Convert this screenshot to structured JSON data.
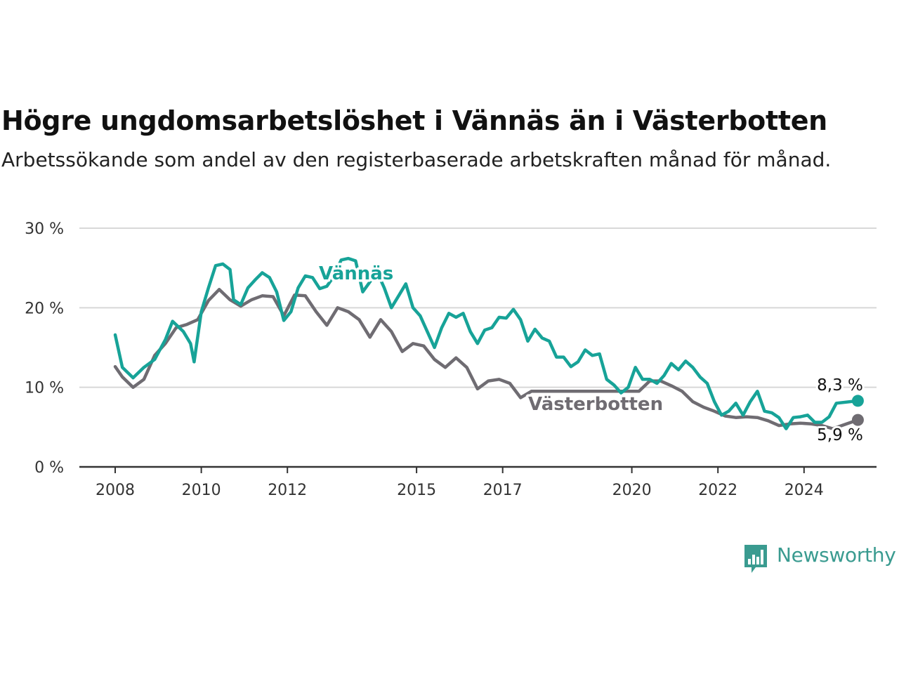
{
  "title": "Högre ungdomsarbetslöshet i Vännäs än i Västerbotten",
  "subtitle": "Arbetssökande som andel av den registerbaserade arbetskraften månad för månad.",
  "brand": {
    "name": "Newsworthy",
    "color": "#3a9b90",
    "icon": "newsworthy-chart-icon"
  },
  "chart_data": {
    "type": "line",
    "title": "Högre ungdomsarbetslöshet i Vännäs än i Västerbotten",
    "ylabel": "",
    "xlabel": "",
    "ylim": [
      0,
      30
    ],
    "xlim": [
      "2008-01",
      "2025-05"
    ],
    "y_ticks": [
      0,
      10,
      20,
      30
    ],
    "y_tick_labels": [
      "0 %",
      "10 %",
      "20 %",
      "30 %"
    ],
    "x_ticks": [
      "2008-01",
      "2010-01",
      "2012-01",
      "2015-01",
      "2017-01",
      "2020-01",
      "2022-01",
      "2024-01"
    ],
    "x_tick_labels": [
      "2008",
      "2010",
      "2012",
      "2015",
      "2017",
      "2020",
      "2022",
      "2024"
    ],
    "grid": true,
    "legend": "inline labels",
    "series": [
      {
        "name": "Vännäs",
        "color": "#17a398",
        "end_label": "8,3 %",
        "points": [
          [
            "2008-01",
            16.6
          ],
          [
            "2008-03",
            12.5
          ],
          [
            "2008-06",
            11.2
          ],
          [
            "2008-09",
            12.5
          ],
          [
            "2008-12",
            13.5
          ],
          [
            "2009-03",
            16.0
          ],
          [
            "2009-05",
            18.3
          ],
          [
            "2009-08",
            17.0
          ],
          [
            "2009-10",
            15.5
          ],
          [
            "2009-11",
            13.2
          ],
          [
            "2010-01",
            19.5
          ],
          [
            "2010-03",
            22.5
          ],
          [
            "2010-05",
            25.3
          ],
          [
            "2010-07",
            25.5
          ],
          [
            "2010-09",
            24.8
          ],
          [
            "2010-10",
            21.0
          ],
          [
            "2010-12",
            20.4
          ],
          [
            "2011-02",
            22.5
          ],
          [
            "2011-04",
            23.5
          ],
          [
            "2011-06",
            24.4
          ],
          [
            "2011-08",
            23.8
          ],
          [
            "2011-10",
            22.0
          ],
          [
            "2011-12",
            18.4
          ],
          [
            "2012-02",
            19.5
          ],
          [
            "2012-04",
            22.5
          ],
          [
            "2012-06",
            24.0
          ],
          [
            "2012-08",
            23.8
          ],
          [
            "2012-10",
            22.4
          ],
          [
            "2012-12",
            22.7
          ],
          [
            "2013-02",
            24.0
          ],
          [
            "2013-04",
            26.0
          ],
          [
            "2013-06",
            26.2
          ],
          [
            "2013-08",
            25.9
          ],
          [
            "2013-10",
            22.0
          ],
          [
            "2014-02",
            24.5
          ],
          [
            "2014-04",
            22.5
          ],
          [
            "2014-06",
            20.0
          ],
          [
            "2014-08",
            21.5
          ],
          [
            "2014-10",
            23.0
          ],
          [
            "2014-12",
            20.0
          ],
          [
            "2015-02",
            19.0
          ],
          [
            "2015-04",
            17.0
          ],
          [
            "2015-06",
            15.0
          ],
          [
            "2015-08",
            17.5
          ],
          [
            "2015-10",
            19.3
          ],
          [
            "2015-12",
            18.8
          ],
          [
            "2016-02",
            19.3
          ],
          [
            "2016-04",
            17.0
          ],
          [
            "2016-06",
            15.5
          ],
          [
            "2016-08",
            17.2
          ],
          [
            "2016-10",
            17.5
          ],
          [
            "2016-12",
            18.8
          ],
          [
            "2017-02",
            18.7
          ],
          [
            "2017-04",
            19.8
          ],
          [
            "2017-06",
            18.5
          ],
          [
            "2017-08",
            15.8
          ],
          [
            "2017-10",
            17.3
          ],
          [
            "2017-12",
            16.2
          ],
          [
            "2018-02",
            15.8
          ],
          [
            "2018-04",
            13.8
          ],
          [
            "2018-06",
            13.8
          ],
          [
            "2018-08",
            12.6
          ],
          [
            "2018-10",
            13.2
          ],
          [
            "2018-12",
            14.7
          ],
          [
            "2019-02",
            14.0
          ],
          [
            "2019-04",
            14.2
          ],
          [
            "2019-06",
            11.0
          ],
          [
            "2019-08",
            10.3
          ],
          [
            "2019-10",
            9.3
          ],
          [
            "2019-12",
            10.0
          ],
          [
            "2020-02",
            12.5
          ],
          [
            "2020-04",
            11.0
          ],
          [
            "2020-06",
            11.0
          ],
          [
            "2020-08",
            10.5
          ],
          [
            "2020-10",
            11.5
          ],
          [
            "2020-12",
            13.0
          ],
          [
            "2021-02",
            12.2
          ],
          [
            "2021-04",
            13.3
          ],
          [
            "2021-06",
            12.5
          ],
          [
            "2021-08",
            11.3
          ],
          [
            "2021-10",
            10.5
          ],
          [
            "2021-12",
            8.2
          ],
          [
            "2022-02",
            6.5
          ],
          [
            "2022-04",
            7.0
          ],
          [
            "2022-06",
            8.0
          ],
          [
            "2022-08",
            6.5
          ],
          [
            "2022-10",
            8.2
          ],
          [
            "2022-12",
            9.5
          ],
          [
            "2023-02",
            7.0
          ],
          [
            "2023-04",
            6.8
          ],
          [
            "2023-06",
            6.2
          ],
          [
            "2023-08",
            4.8
          ],
          [
            "2023-10",
            6.2
          ],
          [
            "2023-12",
            6.3
          ],
          [
            "2024-02",
            6.5
          ],
          [
            "2024-04",
            5.6
          ],
          [
            "2024-06",
            5.6
          ],
          [
            "2024-08",
            6.3
          ],
          [
            "2024-10",
            8.0
          ],
          [
            "2025-04",
            8.3
          ]
        ]
      },
      {
        "name": "Västerbotten",
        "color": "#6f6c72",
        "end_label": "5,9 %",
        "points": [
          [
            "2008-01",
            12.6
          ],
          [
            "2008-03",
            11.3
          ],
          [
            "2008-06",
            10.0
          ],
          [
            "2008-09",
            11.0
          ],
          [
            "2008-12",
            14.0
          ],
          [
            "2009-03",
            15.5
          ],
          [
            "2009-06",
            17.5
          ],
          [
            "2009-09",
            17.9
          ],
          [
            "2009-12",
            18.5
          ],
          [
            "2010-03",
            20.9
          ],
          [
            "2010-06",
            22.3
          ],
          [
            "2010-09",
            21.0
          ],
          [
            "2010-12",
            20.2
          ],
          [
            "2011-03",
            21.0
          ],
          [
            "2011-06",
            21.5
          ],
          [
            "2011-09",
            21.4
          ],
          [
            "2011-12",
            19.0
          ],
          [
            "2012-03",
            21.6
          ],
          [
            "2012-06",
            21.5
          ],
          [
            "2012-09",
            19.5
          ],
          [
            "2012-12",
            17.8
          ],
          [
            "2013-03",
            20.0
          ],
          [
            "2013-06",
            19.5
          ],
          [
            "2013-09",
            18.5
          ],
          [
            "2013-12",
            16.3
          ],
          [
            "2014-03",
            18.5
          ],
          [
            "2014-06",
            17.0
          ],
          [
            "2014-09",
            14.5
          ],
          [
            "2014-12",
            15.5
          ],
          [
            "2015-03",
            15.2
          ],
          [
            "2015-06",
            13.5
          ],
          [
            "2015-09",
            12.5
          ],
          [
            "2015-12",
            13.7
          ],
          [
            "2016-03",
            12.5
          ],
          [
            "2016-06",
            9.8
          ],
          [
            "2016-09",
            10.8
          ],
          [
            "2016-12",
            11.0
          ],
          [
            "2017-03",
            10.5
          ],
          [
            "2017-06",
            8.7
          ],
          [
            "2017-09",
            9.5
          ],
          [
            "2017-12",
            9.5
          ],
          [
            "2020-03",
            9.5
          ],
          [
            "2020-06",
            10.8
          ],
          [
            "2020-09",
            10.8
          ],
          [
            "2020-12",
            10.2
          ],
          [
            "2021-03",
            9.5
          ],
          [
            "2021-06",
            8.2
          ],
          [
            "2021-09",
            7.5
          ],
          [
            "2021-12",
            7.0
          ],
          [
            "2022-03",
            6.4
          ],
          [
            "2022-06",
            6.2
          ],
          [
            "2022-09",
            6.3
          ],
          [
            "2022-12",
            6.2
          ],
          [
            "2023-03",
            5.8
          ],
          [
            "2023-06",
            5.2
          ],
          [
            "2023-09",
            5.4
          ],
          [
            "2023-12",
            5.5
          ],
          [
            "2024-03",
            5.4
          ],
          [
            "2024-06",
            5.2
          ],
          [
            "2024-09",
            4.8
          ],
          [
            "2025-04",
            5.9
          ]
        ]
      }
    ]
  }
}
